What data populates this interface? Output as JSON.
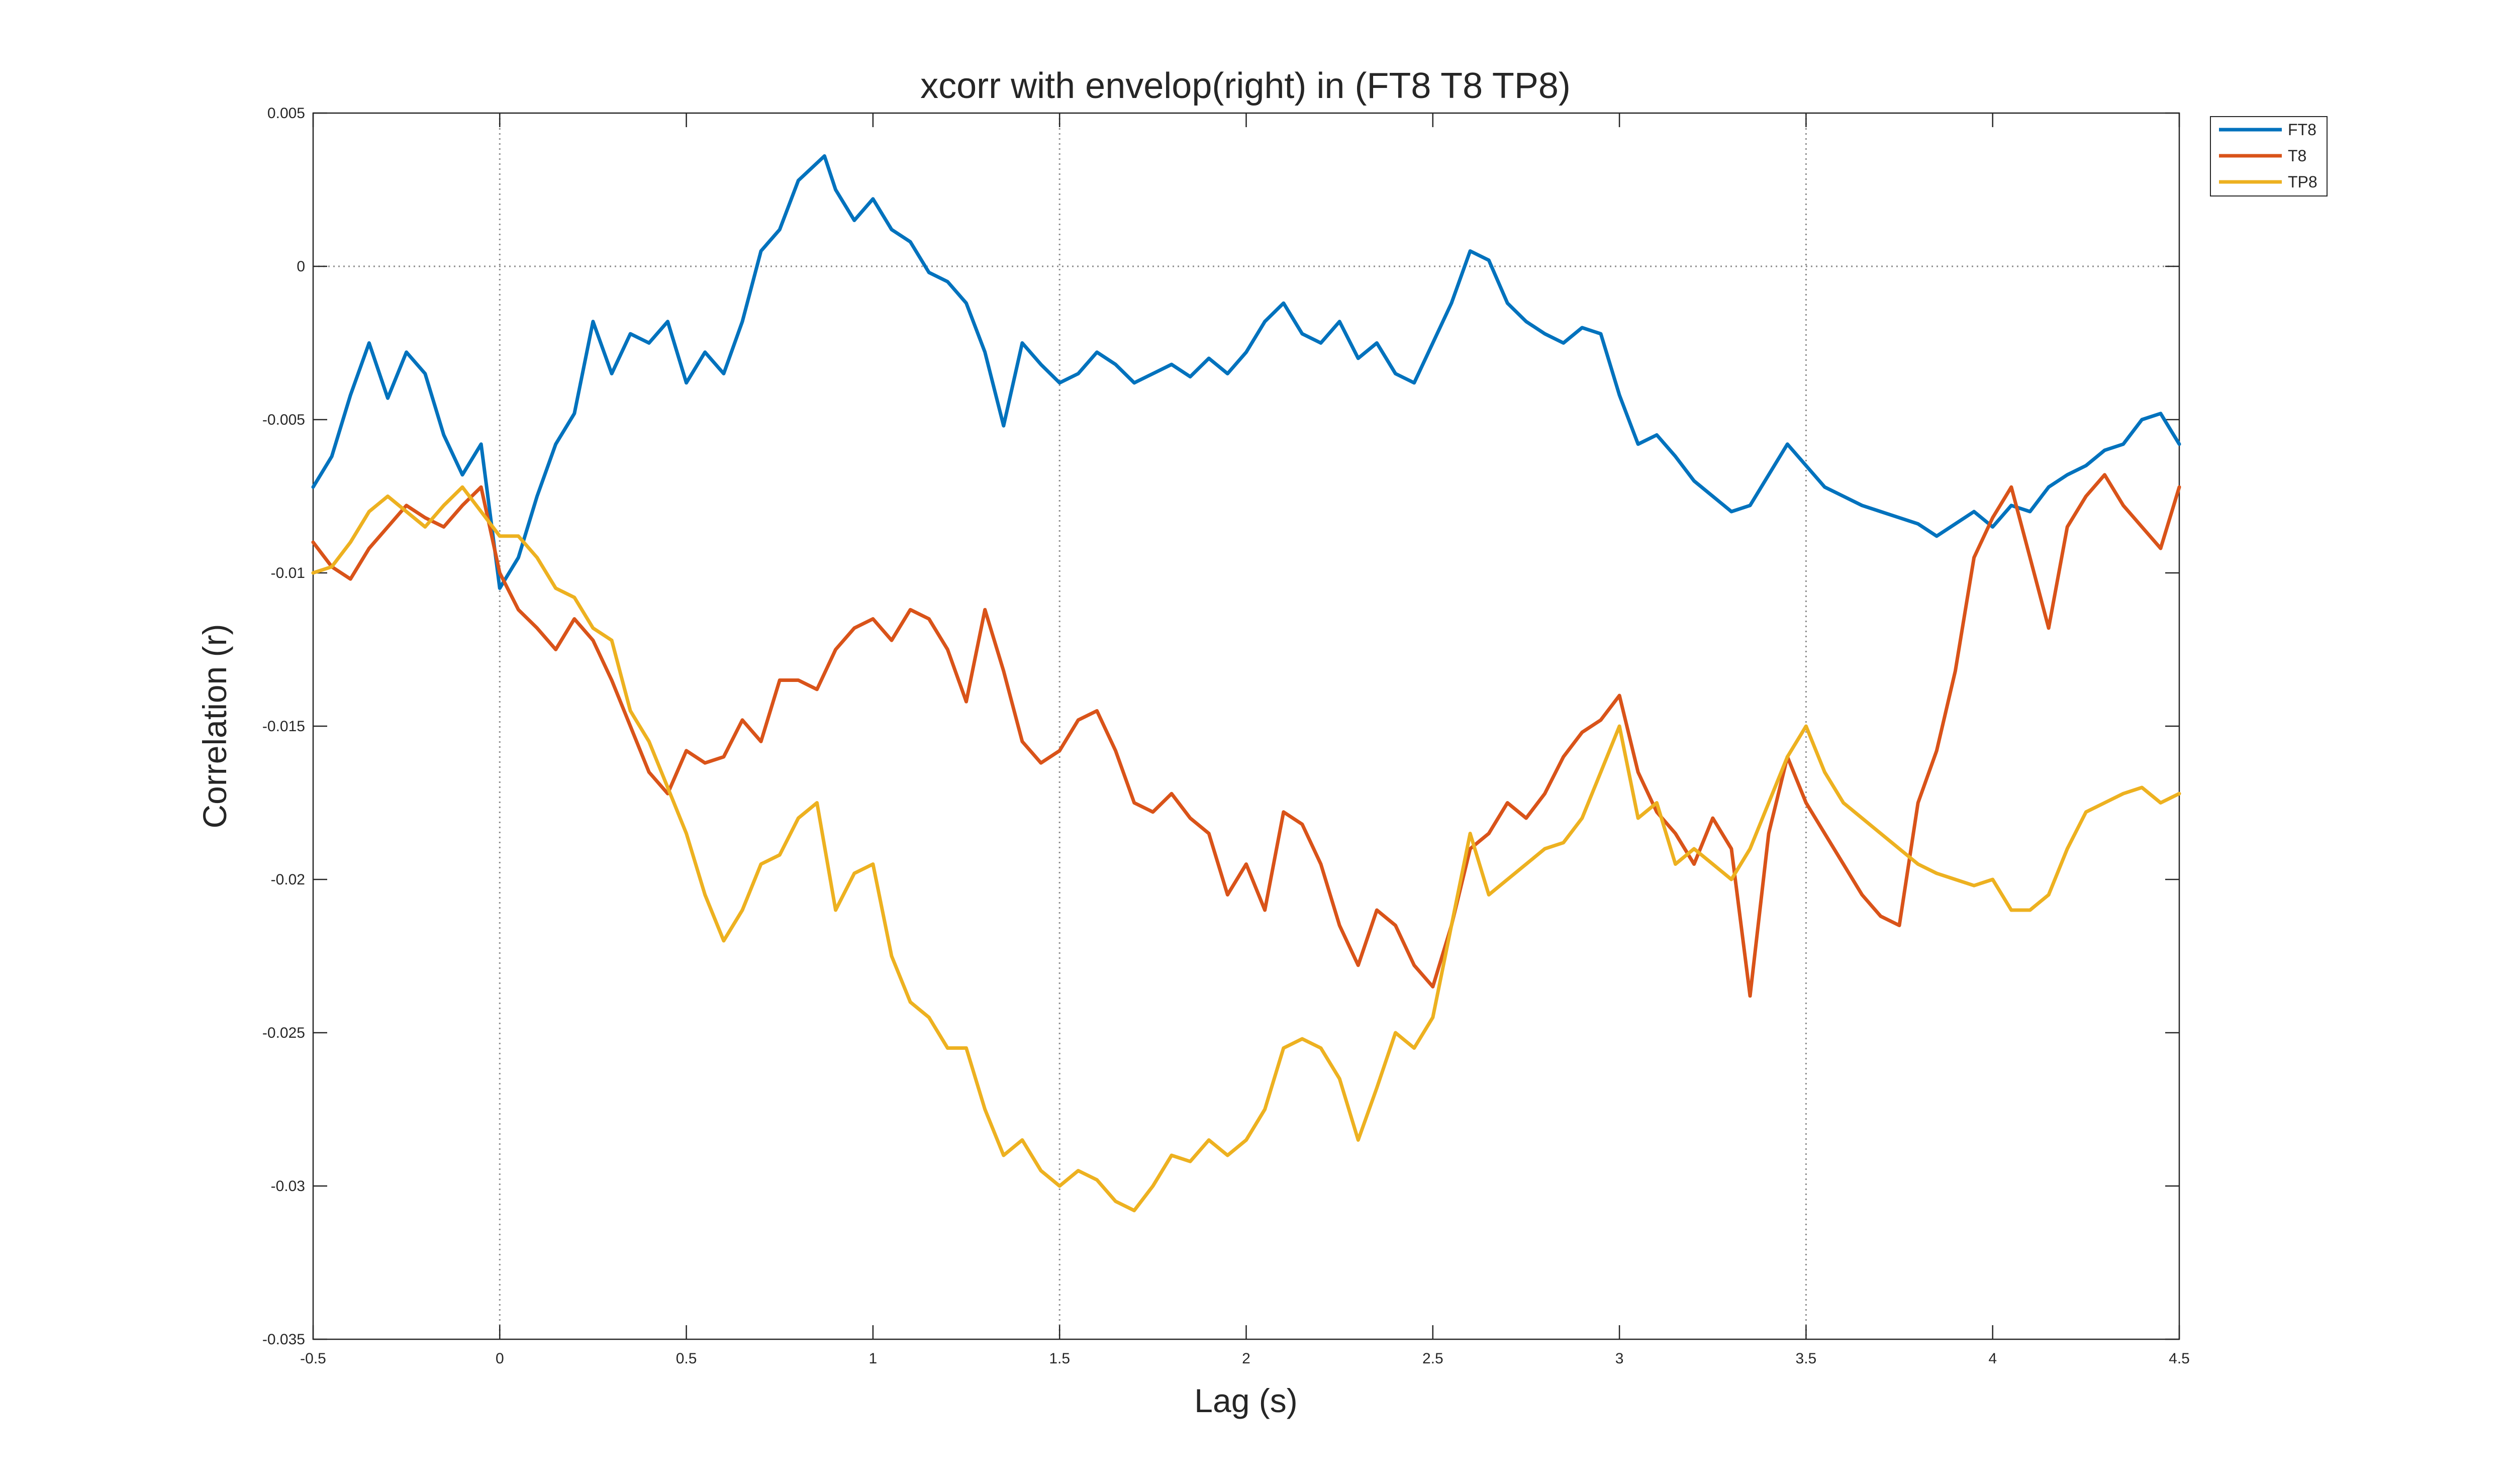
{
  "chart_data": {
    "type": "line",
    "title": "xcorr with envelop(right) in (FT8 T8 TP8)",
    "xlabel": "Lag (s)",
    "ylabel": "Correlation (r)",
    "xlim": [
      -0.5,
      4.5
    ],
    "ylim": [
      -0.035,
      0.005
    ],
    "xticks": [
      -0.5,
      0,
      0.5,
      1,
      1.5,
      2,
      2.5,
      3,
      3.5,
      4,
      4.5
    ],
    "xtick_labels": [
      "-0.5",
      "0",
      "0.5",
      "1",
      "1.5",
      "2",
      "2.5",
      "3",
      "3.5",
      "4",
      "4.5"
    ],
    "yticks": [
      0.005,
      0,
      -0.005,
      -0.01,
      -0.015,
      -0.02,
      -0.025,
      -0.03,
      -0.035
    ],
    "ytick_labels": [
      "0.005",
      "0",
      "-0.005",
      "-0.01",
      "-0.015",
      "-0.02",
      "-0.025",
      "-0.03",
      "-0.035"
    ],
    "reference_lines": {
      "y": [
        0
      ],
      "x": [
        0,
        1.5,
        3.5
      ]
    },
    "legend_position": "top-right, outside plot area",
    "grid": false,
    "series": [
      {
        "name": "FT8",
        "color": "#0072BD",
        "x": [
          -0.5,
          -0.45,
          -0.4,
          -0.35,
          -0.3,
          -0.25,
          -0.2,
          -0.15,
          -0.1,
          -0.05,
          0,
          0.05,
          0.1,
          0.15,
          0.2,
          0.25,
          0.3,
          0.35,
          0.4,
          0.45,
          0.5,
          0.55,
          0.6,
          0.65,
          0.7,
          0.75,
          0.8,
          0.87,
          0.9,
          0.95,
          1.0,
          1.05,
          1.1,
          1.15,
          1.2,
          1.25,
          1.3,
          1.35,
          1.4,
          1.45,
          1.5,
          1.55,
          1.6,
          1.65,
          1.7,
          1.75,
          1.8,
          1.85,
          1.9,
          1.95,
          2.0,
          2.05,
          2.1,
          2.15,
          2.2,
          2.25,
          2.3,
          2.35,
          2.4,
          2.45,
          2.5,
          2.55,
          2.6,
          2.65,
          2.7,
          2.75,
          2.8,
          2.85,
          2.9,
          2.95,
          3.0,
          3.05,
          3.1,
          3.15,
          3.2,
          3.25,
          3.3,
          3.35,
          3.4,
          3.45,
          3.5,
          3.55,
          3.6,
          3.65,
          3.7,
          3.75,
          3.8,
          3.85,
          3.9,
          3.95,
          4.0,
          4.05,
          4.1,
          4.15,
          4.2,
          4.25,
          4.3,
          4.35,
          4.4,
          4.45,
          4.5
        ],
        "y": [
          -0.0072,
          -0.0062,
          -0.0042,
          -0.0025,
          -0.0043,
          -0.0028,
          -0.0035,
          -0.0055,
          -0.0068,
          -0.0058,
          -0.0105,
          -0.0095,
          -0.0075,
          -0.0058,
          -0.0048,
          -0.0018,
          -0.0035,
          -0.0022,
          -0.0025,
          -0.0018,
          -0.0038,
          -0.0028,
          -0.0035,
          -0.0018,
          0.0005,
          0.0012,
          0.0028,
          0.0036,
          0.0025,
          0.0015,
          0.0022,
          0.0012,
          0.0008,
          -0.0002,
          -0.0005,
          -0.0012,
          -0.0028,
          -0.0052,
          -0.0025,
          -0.0032,
          -0.0038,
          -0.0035,
          -0.0028,
          -0.0032,
          -0.0038,
          -0.0035,
          -0.0032,
          -0.0036,
          -0.003,
          -0.0035,
          -0.0028,
          -0.0018,
          -0.0012,
          -0.0022,
          -0.0025,
          -0.0018,
          -0.003,
          -0.0025,
          -0.0035,
          -0.0038,
          -0.0025,
          -0.0012,
          0.0005,
          0.0002,
          -0.0012,
          -0.0018,
          -0.0022,
          -0.0025,
          -0.002,
          -0.0022,
          -0.0042,
          -0.0058,
          -0.0055,
          -0.0062,
          -0.007,
          -0.0075,
          -0.008,
          -0.0078,
          -0.0068,
          -0.0058,
          -0.0065,
          -0.0072,
          -0.0075,
          -0.0078,
          -0.008,
          -0.0082,
          -0.0084,
          -0.0088,
          -0.0084,
          -0.008,
          -0.0085,
          -0.0078,
          -0.008,
          -0.0072,
          -0.0068,
          -0.0065,
          -0.006,
          -0.0058,
          -0.005,
          -0.0048,
          -0.0058
        ]
      },
      {
        "name": "T8",
        "color": "#D95319",
        "x": [
          -0.5,
          -0.45,
          -0.4,
          -0.35,
          -0.3,
          -0.25,
          -0.2,
          -0.15,
          -0.1,
          -0.05,
          0,
          0.05,
          0.1,
          0.15,
          0.2,
          0.25,
          0.3,
          0.35,
          0.4,
          0.45,
          0.5,
          0.55,
          0.6,
          0.65,
          0.7,
          0.75,
          0.8,
          0.85,
          0.9,
          0.95,
          1.0,
          1.05,
          1.1,
          1.15,
          1.2,
          1.25,
          1.3,
          1.35,
          1.4,
          1.45,
          1.5,
          1.55,
          1.6,
          1.65,
          1.7,
          1.75,
          1.8,
          1.85,
          1.9,
          1.95,
          2.0,
          2.05,
          2.1,
          2.15,
          2.2,
          2.25,
          2.3,
          2.35,
          2.4,
          2.45,
          2.5,
          2.55,
          2.6,
          2.65,
          2.7,
          2.75,
          2.8,
          2.85,
          2.9,
          2.95,
          3.0,
          3.05,
          3.1,
          3.15,
          3.2,
          3.25,
          3.3,
          3.35,
          3.4,
          3.45,
          3.5,
          3.55,
          3.6,
          3.65,
          3.7,
          3.75,
          3.8,
          3.85,
          3.9,
          3.95,
          4.0,
          4.05,
          4.1,
          4.15,
          4.2,
          4.25,
          4.3,
          4.35,
          4.4,
          4.45,
          4.5
        ],
        "y": [
          -0.009,
          -0.0098,
          -0.0102,
          -0.0092,
          -0.0085,
          -0.0078,
          -0.0082,
          -0.0085,
          -0.0078,
          -0.0072,
          -0.01,
          -0.0112,
          -0.0118,
          -0.0125,
          -0.0115,
          -0.0122,
          -0.0135,
          -0.015,
          -0.0165,
          -0.0172,
          -0.0158,
          -0.0162,
          -0.016,
          -0.0148,
          -0.0155,
          -0.0135,
          -0.0135,
          -0.0138,
          -0.0125,
          -0.0118,
          -0.0115,
          -0.0122,
          -0.0112,
          -0.0115,
          -0.0125,
          -0.0142,
          -0.0112,
          -0.0132,
          -0.0155,
          -0.0162,
          -0.0158,
          -0.0148,
          -0.0145,
          -0.0158,
          -0.0175,
          -0.0178,
          -0.0172,
          -0.018,
          -0.0185,
          -0.0205,
          -0.0195,
          -0.021,
          -0.0178,
          -0.0182,
          -0.0195,
          -0.0215,
          -0.0228,
          -0.021,
          -0.0215,
          -0.0228,
          -0.0235,
          -0.0215,
          -0.019,
          -0.0185,
          -0.0175,
          -0.018,
          -0.0172,
          -0.016,
          -0.0152,
          -0.0148,
          -0.014,
          -0.0165,
          -0.0178,
          -0.0185,
          -0.0195,
          -0.018,
          -0.019,
          -0.0238,
          -0.0185,
          -0.016,
          -0.0175,
          -0.0185,
          -0.0195,
          -0.0205,
          -0.0212,
          -0.0215,
          -0.0175,
          -0.0158,
          -0.0132,
          -0.0095,
          -0.0082,
          -0.0072,
          -0.0095,
          -0.0118,
          -0.0085,
          -0.0075,
          -0.0068,
          -0.0078,
          -0.0085,
          -0.0092,
          -0.0072
        ]
      },
      {
        "name": "TP8",
        "color": "#EDB120",
        "x": [
          -0.5,
          -0.45,
          -0.4,
          -0.35,
          -0.3,
          -0.25,
          -0.2,
          -0.15,
          -0.1,
          -0.05,
          0,
          0.05,
          0.1,
          0.15,
          0.2,
          0.25,
          0.3,
          0.35,
          0.4,
          0.45,
          0.5,
          0.55,
          0.6,
          0.65,
          0.7,
          0.75,
          0.8,
          0.85,
          0.9,
          0.95,
          1.0,
          1.05,
          1.1,
          1.15,
          1.2,
          1.25,
          1.3,
          1.35,
          1.4,
          1.45,
          1.5,
          1.55,
          1.6,
          1.65,
          1.7,
          1.75,
          1.8,
          1.85,
          1.9,
          1.95,
          2.0,
          2.05,
          2.1,
          2.15,
          2.2,
          2.25,
          2.3,
          2.35,
          2.4,
          2.45,
          2.5,
          2.55,
          2.6,
          2.65,
          2.7,
          2.75,
          2.8,
          2.85,
          2.9,
          2.95,
          3.0,
          3.05,
          3.1,
          3.15,
          3.2,
          3.25,
          3.3,
          3.35,
          3.4,
          3.45,
          3.5,
          3.55,
          3.6,
          3.65,
          3.7,
          3.75,
          3.8,
          3.85,
          3.9,
          3.95,
          4.0,
          4.05,
          4.1,
          4.15,
          4.2,
          4.25,
          4.3,
          4.35,
          4.4,
          4.45,
          4.5
        ],
        "y": [
          -0.01,
          -0.0098,
          -0.009,
          -0.008,
          -0.0075,
          -0.008,
          -0.0085,
          -0.0078,
          -0.0072,
          -0.008,
          -0.0088,
          -0.0088,
          -0.0095,
          -0.0105,
          -0.0108,
          -0.0118,
          -0.0122,
          -0.0145,
          -0.0155,
          -0.017,
          -0.0185,
          -0.0205,
          -0.022,
          -0.021,
          -0.0195,
          -0.0192,
          -0.018,
          -0.0175,
          -0.021,
          -0.0198,
          -0.0195,
          -0.0225,
          -0.024,
          -0.0245,
          -0.0255,
          -0.0255,
          -0.0275,
          -0.029,
          -0.0285,
          -0.0295,
          -0.03,
          -0.0295,
          -0.0298,
          -0.0305,
          -0.0308,
          -0.03,
          -0.029,
          -0.0292,
          -0.0285,
          -0.029,
          -0.0285,
          -0.0275,
          -0.0255,
          -0.0252,
          -0.0255,
          -0.0265,
          -0.0285,
          -0.0268,
          -0.025,
          -0.0255,
          -0.0245,
          -0.0215,
          -0.0185,
          -0.0205,
          -0.02,
          -0.0195,
          -0.019,
          -0.0188,
          -0.018,
          -0.0165,
          -0.015,
          -0.018,
          -0.0175,
          -0.0195,
          -0.019,
          -0.0195,
          -0.02,
          -0.019,
          -0.0175,
          -0.016,
          -0.015,
          -0.0165,
          -0.0175,
          -0.018,
          -0.0185,
          -0.019,
          -0.0195,
          -0.0198,
          -0.02,
          -0.0202,
          -0.02,
          -0.021,
          -0.021,
          -0.0205,
          -0.019,
          -0.0178,
          -0.0175,
          -0.0172,
          -0.017,
          -0.0175,
          -0.0172
        ]
      }
    ]
  }
}
